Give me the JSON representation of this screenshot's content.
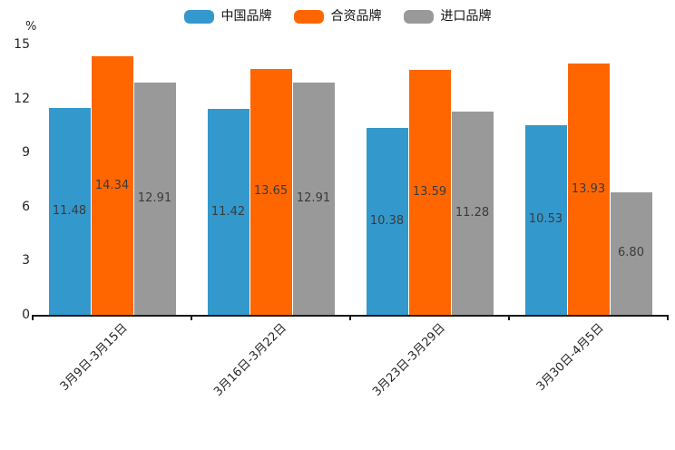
{
  "chart_data": {
    "type": "bar",
    "title": "",
    "categories": [
      "3月9日-3月15日",
      "3月16日-3月22日",
      "3月23日-3月29日",
      "3月30日-4月5日"
    ],
    "series": [
      {
        "name": "中国品牌",
        "color": "#3398CC",
        "values": [
          11.48,
          11.42,
          10.38,
          10.53
        ]
      },
      {
        "name": "合资品牌",
        "color": "#FF6600",
        "values": [
          14.34,
          13.65,
          13.59,
          13.93
        ]
      },
      {
        "name": "进口品牌",
        "color": "#999999",
        "values": [
          12.91,
          12.91,
          11.28,
          6.8
        ]
      }
    ],
    "xlabel": "",
    "ylabel": "%",
    "ylim": [
      0,
      15
    ],
    "yticks": [
      0,
      3,
      6,
      9,
      12,
      15
    ],
    "grid": false,
    "legend_position": "top-center",
    "value_labels": "centered-in-bar, 2 decimals",
    "value_label_color": "#3b3b3b",
    "axis_color": "#1a1a1a"
  }
}
